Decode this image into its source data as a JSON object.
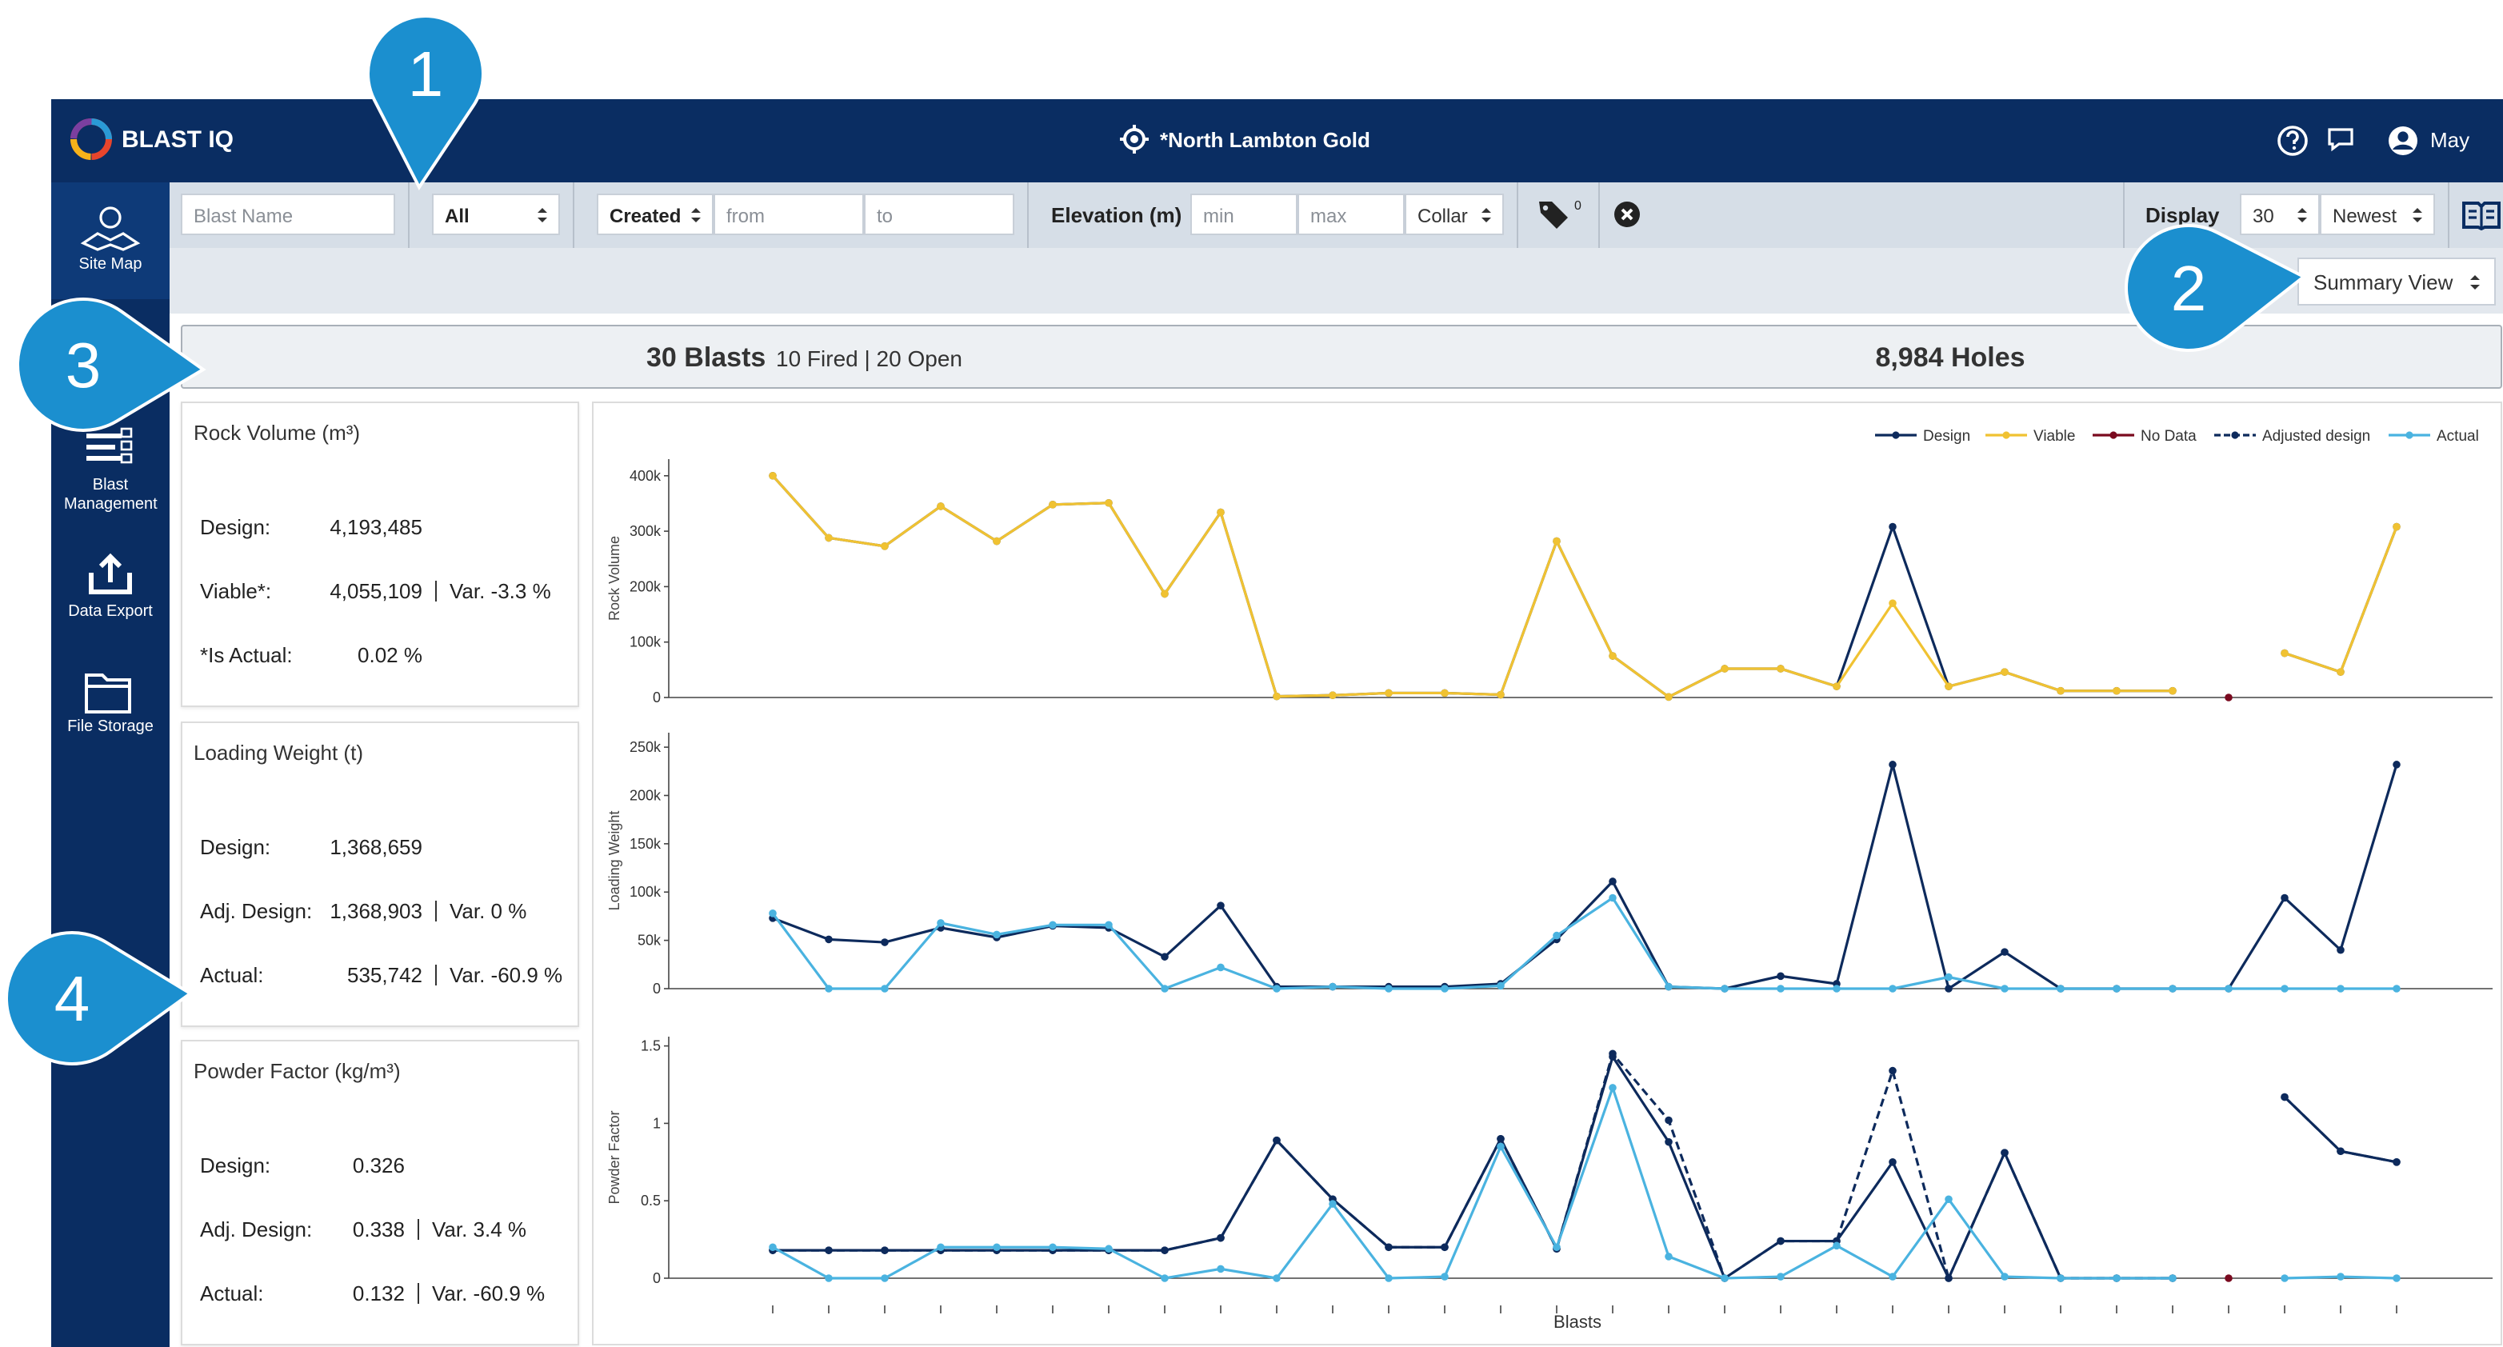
{
  "header": {
    "brand": "BLAST IQ",
    "site": "*North Lambton Gold",
    "user": "May"
  },
  "sidebar": [
    {
      "label": "Site Map"
    },
    {
      "label": "Blast Management"
    },
    {
      "label": "Data Export"
    },
    {
      "label": "File Storage"
    }
  ],
  "filters": {
    "blast_name": "Blast Name",
    "status": "All",
    "date_field": "Created",
    "from": "from",
    "to": "to",
    "elevation_label": "Elevation (m)",
    "min": "min",
    "max": "max",
    "elevation_ref": "Collar",
    "tag_count": "0",
    "display_label": "Display",
    "display_count": "30",
    "sort": "Newest"
  },
  "view": "Summary View",
  "summary": {
    "blasts": "30 Blasts",
    "status": "10 Fired | 20 Open",
    "holes": "8,984 Holes"
  },
  "cards": [
    {
      "title": "Rock Volume (m³)",
      "rows": [
        {
          "label": "Design:",
          "value": "4,193,485"
        },
        {
          "label": "Viable*:",
          "value": "4,055,109",
          "variance": "Var. -3.3 %"
        },
        {
          "label": "*Is Actual:",
          "value": "0.02 %"
        }
      ]
    },
    {
      "title": "Loading Weight (t)",
      "rows": [
        {
          "label": "Design:",
          "value": "1,368,659"
        },
        {
          "label": "Adj. Design:",
          "value": "1,368,903",
          "variance": "Var. 0 %"
        },
        {
          "label": "Actual:",
          "value": "535,742",
          "variance": "Var. -60.9 %"
        }
      ]
    },
    {
      "title": "Powder Factor (kg/m³)",
      "rows": [
        {
          "label": "Design:",
          "value": "0.326"
        },
        {
          "label": "Adj. Design:",
          "value": "0.338",
          "variance": "Var. 3.4 %"
        },
        {
          "label": "Actual:",
          "value": "0.132",
          "variance": "Var. -60.9 %"
        }
      ]
    }
  ],
  "chart_legend": [
    {
      "name": "Design",
      "color": "#0d2a5c"
    },
    {
      "name": "Viable",
      "color": "#f0c232"
    },
    {
      "name": "No Data",
      "color": "#7a0a1f"
    },
    {
      "name": "Adjusted design",
      "color": "#0d2a5c",
      "dashed": true
    },
    {
      "name": "Actual",
      "color": "#4ab3e0"
    }
  ],
  "chart_data": [
    {
      "type": "line",
      "y_label": "Rock Volume",
      "ylim": [
        0,
        430000
      ],
      "yticks": [
        0,
        {
          "value": 100000,
          "label": "100k"
        },
        {
          "value": 200000,
          "label": "200k"
        },
        {
          "value": 300000,
          "label": "300k"
        },
        {
          "value": 400000,
          "label": "400k"
        }
      ],
      "series": [
        {
          "name": "Design",
          "color": "#0d2a5c",
          "values": [
            400000,
            288000,
            273000,
            345000,
            282000,
            348000,
            351000,
            187000,
            334000,
            2000,
            4000,
            8000,
            8000,
            5000,
            282000,
            75000,
            1000,
            52000,
            52000,
            20000,
            308000,
            20000,
            46000,
            12000,
            12000,
            12000,
            null,
            80000,
            46000,
            308000
          ]
        },
        {
          "name": "Viable",
          "color": "#f0c232",
          "values": [
            400000,
            288000,
            273000,
            345000,
            282000,
            348000,
            351000,
            187000,
            334000,
            2000,
            4000,
            8000,
            8000,
            5000,
            282000,
            75000,
            1000,
            52000,
            52000,
            20000,
            170000,
            20000,
            46000,
            12000,
            12000,
            12000,
            null,
            80000,
            46000,
            308000
          ]
        },
        {
          "name": "No Data",
          "color": "#7a0a1f",
          "values": [
            null,
            null,
            null,
            null,
            null,
            null,
            null,
            null,
            null,
            null,
            null,
            null,
            null,
            null,
            null,
            null,
            null,
            null,
            null,
            null,
            null,
            null,
            null,
            null,
            null,
            null,
            0,
            null,
            null,
            null
          ]
        }
      ]
    },
    {
      "type": "line",
      "y_label": "Loading Weight",
      "ylim": [
        0,
        265000
      ],
      "yticks": [
        0,
        {
          "value": 50000,
          "label": "50k"
        },
        {
          "value": 100000,
          "label": "100k"
        },
        {
          "value": 150000,
          "label": "150k"
        },
        {
          "value": 200000,
          "label": "200k"
        },
        {
          "value": 250000,
          "label": "250k"
        }
      ],
      "series": [
        {
          "name": "Design",
          "color": "#0d2a5c",
          "values": [
            73000,
            51000,
            48000,
            63000,
            53000,
            65000,
            63000,
            33000,
            86000,
            2000,
            2000,
            2000,
            2000,
            5000,
            51000,
            111000,
            2000,
            0,
            13000,
            5000,
            232000,
            0,
            38000,
            0,
            0,
            0,
            0,
            94000,
            40000,
            232000
          ]
        },
        {
          "name": "Actual",
          "color": "#4ab3e0",
          "values": [
            78000,
            0,
            0,
            68000,
            56000,
            66000,
            66000,
            0,
            22000,
            0,
            2000,
            0,
            0,
            3000,
            55000,
            94000,
            2000,
            0,
            0,
            0,
            0,
            12000,
            0,
            0,
            0,
            0,
            0,
            0,
            0,
            0
          ]
        }
      ]
    },
    {
      "type": "line",
      "y_label": "Powder Factor",
      "x_label": "Blasts",
      "ylim": [
        0,
        1.56
      ],
      "yticks": [
        0,
        0.5,
        1,
        1.5
      ],
      "series": [
        {
          "name": "Design",
          "color": "#0d2a5c",
          "values": [
            0.18,
            0.18,
            0.18,
            0.18,
            0.18,
            0.18,
            0.18,
            0.18,
            0.26,
            0.89,
            0.51,
            0.2,
            0.2,
            0.9,
            0.19,
            1.43,
            0.88,
            0,
            0.24,
            0.24,
            0.75,
            0,
            0.81,
            0,
            0,
            0,
            null,
            1.17,
            0.82,
            0.75
          ]
        },
        {
          "name": "Adjusted design",
          "color": "#0d2a5c",
          "dashed": true,
          "values": [
            0.18,
            0.18,
            0.18,
            0.18,
            0.18,
            0.18,
            0.18,
            0.18,
            0.26,
            0.89,
            0.51,
            0.2,
            0.2,
            0.9,
            0.19,
            1.45,
            1.02,
            0,
            0.24,
            0.24,
            1.34,
            0,
            0.81,
            0,
            0,
            0,
            null,
            1.17,
            0.82,
            0.75
          ]
        },
        {
          "name": "Actual",
          "color": "#4ab3e0",
          "values": [
            0.2,
            0,
            0,
            0.2,
            0.2,
            0.2,
            0.19,
            0,
            0.06,
            0,
            0.48,
            0,
            0.01,
            0.85,
            0.2,
            1.23,
            0.14,
            0,
            0.01,
            0.21,
            0.01,
            0.51,
            0.01,
            0,
            0,
            0,
            null,
            0,
            0.01,
            0
          ]
        },
        {
          "name": "No Data",
          "color": "#7a0a1f",
          "values": [
            null,
            null,
            null,
            null,
            null,
            null,
            null,
            null,
            null,
            null,
            null,
            null,
            null,
            null,
            null,
            null,
            null,
            null,
            null,
            null,
            null,
            null,
            null,
            null,
            null,
            null,
            0,
            null,
            null,
            null
          ]
        }
      ]
    }
  ],
  "callouts": [
    "1",
    "2",
    "3",
    "4"
  ]
}
